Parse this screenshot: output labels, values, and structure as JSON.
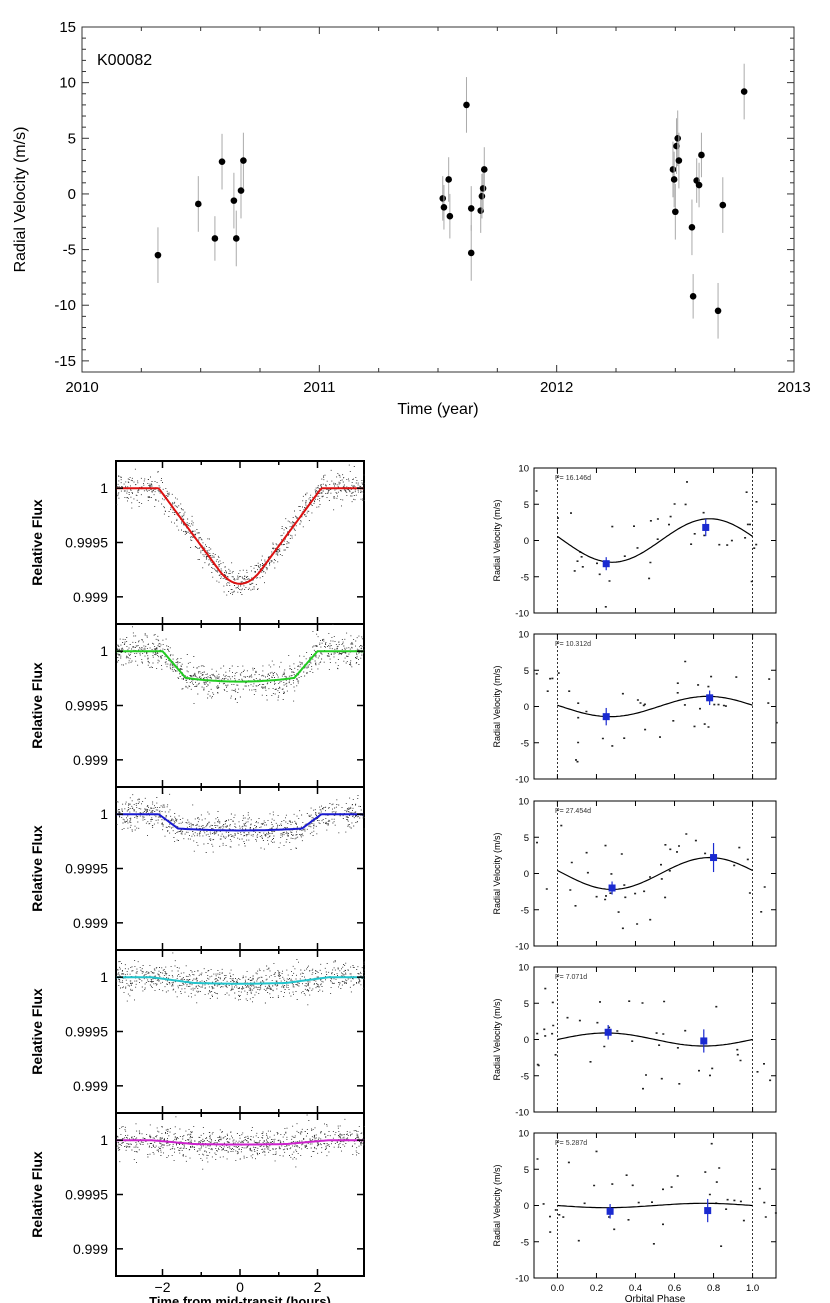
{
  "chart_data": [
    {
      "type": "scatter",
      "annotation": "K00082",
      "xlabel": "Time (year)",
      "ylabel": "Radial Velocity (m/s)",
      "xlim": [
        2010,
        2013
      ],
      "ylim": [
        -16,
        15
      ],
      "xticks": [
        "2010",
        "2011",
        "2012",
        "2013"
      ],
      "yticks": [
        "15",
        "10",
        "5",
        "0",
        "-5",
        "-10",
        "-15"
      ],
      "error_bars": true,
      "points": [
        {
          "x": 2010.32,
          "y": -5.5,
          "err": 2.5
        },
        {
          "x": 2010.49,
          "y": -0.9,
          "err": 2.5
        },
        {
          "x": 2010.56,
          "y": -4.0,
          "err": 2.0
        },
        {
          "x": 2010.59,
          "y": 2.9,
          "err": 2.5
        },
        {
          "x": 2010.64,
          "y": -0.6,
          "err": 2.5
        },
        {
          "x": 2010.65,
          "y": -4.0,
          "err": 2.5
        },
        {
          "x": 2010.67,
          "y": 0.3,
          "err": 2.5
        },
        {
          "x": 2010.68,
          "y": 3.0,
          "err": 2.5
        },
        {
          "x": 2011.52,
          "y": -0.4,
          "err": 2.0
        },
        {
          "x": 2011.525,
          "y": -1.2,
          "err": 2.0
        },
        {
          "x": 2011.545,
          "y": 1.3,
          "err": 2.0
        },
        {
          "x": 2011.55,
          "y": -2.0,
          "err": 2.0
        },
        {
          "x": 2011.62,
          "y": 8.0,
          "err": 2.5
        },
        {
          "x": 2011.64,
          "y": -1.3,
          "err": 2.0
        },
        {
          "x": 2011.64,
          "y": -5.3,
          "err": 2.5
        },
        {
          "x": 2011.68,
          "y": -1.5,
          "err": 2.0
        },
        {
          "x": 2011.685,
          "y": -0.2,
          "err": 2.0
        },
        {
          "x": 2011.69,
          "y": 0.5,
          "err": 2.0
        },
        {
          "x": 2011.695,
          "y": 2.2,
          "err": 2.0
        },
        {
          "x": 2012.49,
          "y": 2.2,
          "err": 2.5
        },
        {
          "x": 2012.495,
          "y": 1.3,
          "err": 2.5
        },
        {
          "x": 2012.5,
          "y": -1.6,
          "err": 2.5
        },
        {
          "x": 2012.505,
          "y": 4.3,
          "err": 2.5
        },
        {
          "x": 2012.51,
          "y": 5.0,
          "err": 2.5
        },
        {
          "x": 2012.515,
          "y": 3.0,
          "err": 2.5
        },
        {
          "x": 2012.57,
          "y": -3.0,
          "err": 2.5
        },
        {
          "x": 2012.575,
          "y": -9.2,
          "err": 2.0
        },
        {
          "x": 2012.59,
          "y": 1.2,
          "err": 2.0
        },
        {
          "x": 2012.6,
          "y": 0.8,
          "err": 2.0
        },
        {
          "x": 2012.61,
          "y": 3.5,
          "err": 2.0
        },
        {
          "x": 2012.68,
          "y": -10.5,
          "err": 2.5
        },
        {
          "x": 2012.7,
          "y": -1.0,
          "err": 2.5
        },
        {
          "x": 2012.79,
          "y": 9.2,
          "err": 2.5
        }
      ]
    },
    {
      "type": "line",
      "panel_group": "transit",
      "ylabel": "Relative Flux",
      "xlabel": "Time from mid-transit (hours)",
      "xlim": [
        -3.2,
        3.2
      ],
      "ylim": [
        0.99875,
        1.00025
      ],
      "xticks": [
        "−2",
        "0",
        "2"
      ],
      "yticks": [
        "1",
        "0.9995",
        "0.999"
      ],
      "series": [
        {
          "color": "#dd1111",
          "depth": 0.00088,
          "t_flat": 0.5,
          "t_edge": 2.1
        },
        {
          "color": "#22cc22",
          "depth": 0.00028,
          "t_flat": 1.4,
          "t_edge": 2.0
        },
        {
          "color": "#1a1ad0",
          "depth": 0.00015,
          "t_flat": 1.6,
          "t_edge": 2.1
        },
        {
          "color": "#22c4cc",
          "depth": 6e-05,
          "t_flat": 1.2,
          "t_edge": 2.3
        },
        {
          "color": "#cc22cc",
          "depth": 4e-05,
          "t_flat": 1.2,
          "t_edge": 2.3
        }
      ]
    },
    {
      "type": "scatter",
      "panel_group": "phase-folded-rv",
      "ylabel": "Radial Velocity (m/s)",
      "xlabel": "Orbital Phase",
      "xlim": [
        -0.12,
        1.12
      ],
      "ylim": [
        -10,
        10
      ],
      "xticks": [
        "0.0",
        "0.2",
        "0.4",
        "0.6",
        "0.8",
        "1.0"
      ],
      "yticks": [
        "10",
        "5",
        "0",
        "-5",
        "-10"
      ],
      "series": [
        {
          "period_label": "P= 16.146d",
          "amplitude": 3.0,
          "phase_shift": 0.53,
          "binned": [
            {
              "x": 0.25,
              "y": -3.2,
              "err": 0.9
            },
            {
              "x": 0.76,
              "y": 1.8,
              "err": 1.2
            }
          ]
        },
        {
          "period_label": "P= 10.312d",
          "amplitude": 1.4,
          "phase_shift": 0.52,
          "binned": [
            {
              "x": 0.25,
              "y": -1.4,
              "err": 1.2
            },
            {
              "x": 0.78,
              "y": 1.2,
              "err": 1.0
            }
          ]
        },
        {
          "period_label": "P= 27.454d",
          "amplitude": 2.2,
          "phase_shift": 0.53,
          "binned": [
            {
              "x": 0.28,
              "y": -2.0,
              "err": 0.9
            },
            {
              "x": 0.8,
              "y": 2.2,
              "err": 2.0
            }
          ]
        },
        {
          "period_label": "P= 7.071d",
          "amplitude": 0.9,
          "phase_shift": 0.0,
          "binned": [
            {
              "x": 0.26,
              "y": 1.0,
              "err": 1.0
            },
            {
              "x": 0.75,
              "y": -0.2,
              "err": 1.6
            }
          ]
        },
        {
          "period_label": "P= 5.287d",
          "amplitude": 0.3,
          "phase_shift": 0.5,
          "binned": [
            {
              "x": 0.27,
              "y": -0.8,
              "err": 1.0
            },
            {
              "x": 0.77,
              "y": -0.7,
              "err": 1.6
            }
          ]
        }
      ]
    }
  ]
}
